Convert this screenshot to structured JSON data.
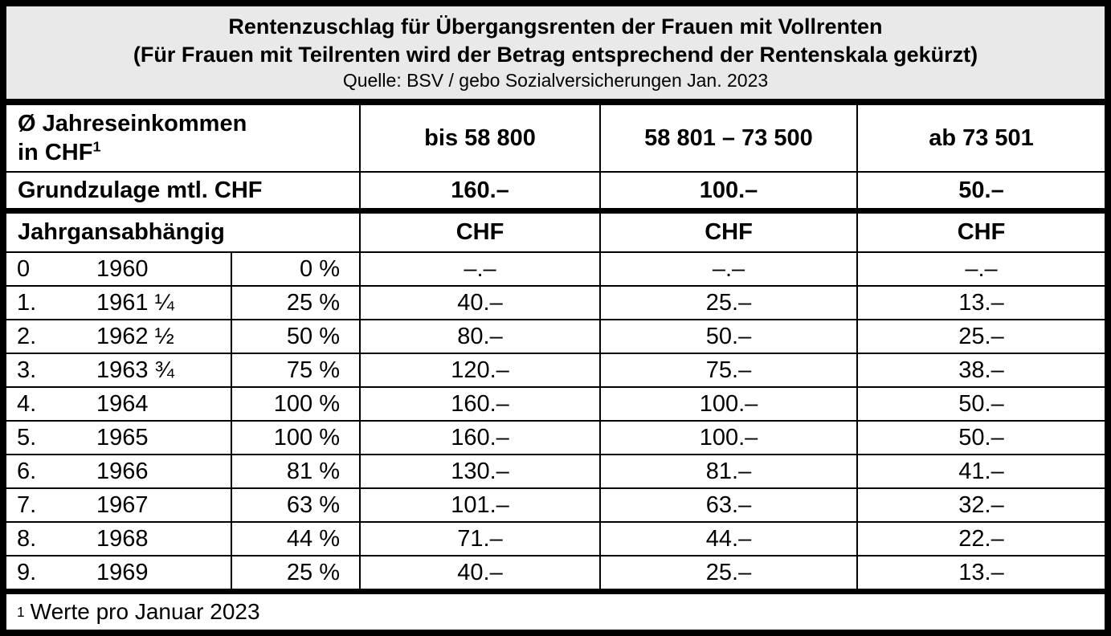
{
  "title": {
    "line1": "Rentenzuschlag für Übergangsrenten der Frauen mit Vollrenten",
    "line2": "(Für Frauen mit Teilrenten wird der Betrag entsprechend der Rentenskala gekürzt)",
    "source": "Quelle: BSV / gebo Sozialversicherungen Jan. 2023"
  },
  "header": {
    "income_line1": "Ø Jahreseinkommen",
    "income_line2": "in CHF",
    "income_footnote_mark": "1",
    "range1": "bis 58 800",
    "range2": "58 801 – 73 500",
    "range3": "ab 73 501"
  },
  "grundzulage": {
    "label": "Grundzulage mtl. CHF",
    "val1": "160.–",
    "val2": "100.–",
    "val3": "50.–"
  },
  "jahrgang": {
    "label": "Jahrgansabhängig",
    "chf1": "CHF",
    "chf2": "CHF",
    "chf3": "CHF"
  },
  "rows": [
    {
      "index": "0",
      "year": "1960",
      "percent": "0 %",
      "val1": "–.–",
      "val2": "–.–",
      "val3": "–.–"
    },
    {
      "index": "1.",
      "year": "1961 ¼",
      "percent": "25 %",
      "val1": "40.–",
      "val2": "25.–",
      "val3": "13.–"
    },
    {
      "index": "2.",
      "year": "1962 ½",
      "percent": "50 %",
      "val1": "80.–",
      "val2": "50.–",
      "val3": "25.–"
    },
    {
      "index": "3.",
      "year": "1963 ¾",
      "percent": "75 %",
      "val1": "120.–",
      "val2": "75.–",
      "val3": "38.–"
    },
    {
      "index": "4.",
      "year": "1964",
      "percent": "100 %",
      "val1": "160.–",
      "val2": "100.–",
      "val3": "50.–"
    },
    {
      "index": "5.",
      "year": "1965",
      "percent": "100 %",
      "val1": "160.–",
      "val2": "100.–",
      "val3": "50.–"
    },
    {
      "index": "6.",
      "year": "1966",
      "percent": "81 %",
      "val1": "130.–",
      "val2": "81.–",
      "val3": "41.–"
    },
    {
      "index": "7.",
      "year": "1967",
      "percent": "63 %",
      "val1": "101.–",
      "val2": "63.–",
      "val3": "32.–"
    },
    {
      "index": "8.",
      "year": "1968",
      "percent": "44 %",
      "val1": "71.–",
      "val2": "44.–",
      "val3": "22.–"
    },
    {
      "index": "9.",
      "year": "1969",
      "percent": "25 %",
      "val1": "40.–",
      "val2": "25.–",
      "val3": "13.–"
    }
  ],
  "footnote": {
    "mark": "1",
    "text": "Werte pro Januar 2023"
  },
  "colors": {
    "title_background": "#e9e9e9",
    "border": "#000000",
    "background": "#ffffff"
  }
}
